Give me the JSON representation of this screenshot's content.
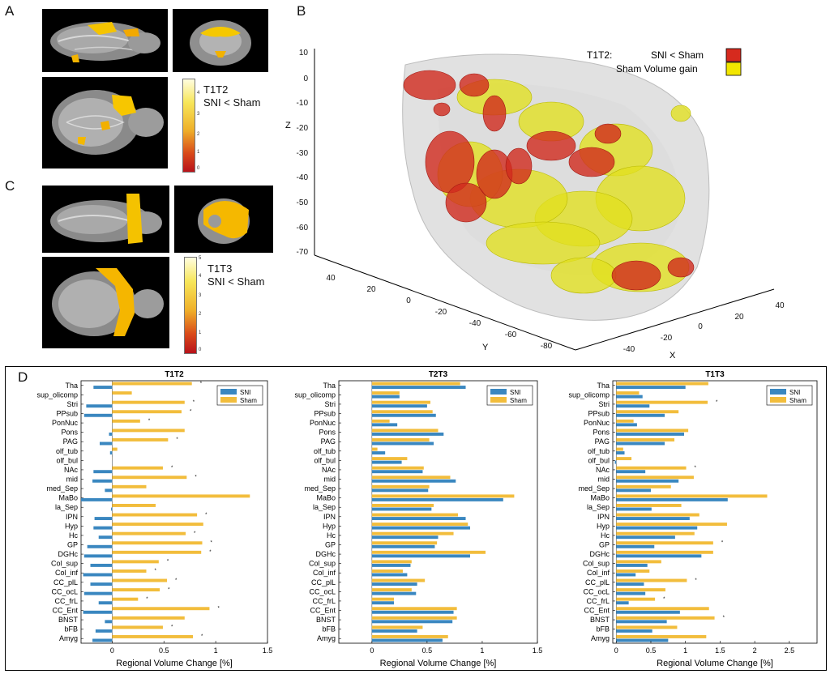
{
  "panels": {
    "a": {
      "letter": "A",
      "colorbar": {
        "title": "T1T2",
        "subtitle": "SNI < Sham",
        "ticks": [
          "4",
          "3",
          "2",
          "1",
          "0"
        ]
      }
    },
    "b": {
      "letter": "B",
      "legend": {
        "prefix": "T1T2:",
        "entries": [
          {
            "label": "SNI < Sham",
            "color": "#d62a1e"
          },
          {
            "label": "Sham Volume gain",
            "color": "#f2e600"
          }
        ]
      },
      "axes": {
        "z": {
          "label": "Z",
          "ticks": [
            "10",
            "0",
            "-10",
            "-20",
            "-30",
            "-40",
            "-50",
            "-60",
            "-70"
          ]
        },
        "y": {
          "label": "Y",
          "ticks": [
            "40",
            "20",
            "0",
            "-20",
            "-40",
            "-60",
            "-80"
          ]
        },
        "x": {
          "label": "X",
          "ticks": [
            "40",
            "20",
            "0",
            "-20",
            "-40"
          ]
        }
      }
    },
    "c": {
      "letter": "C",
      "colorbar": {
        "title": "T1T3",
        "subtitle": "SNI < Sham",
        "ticks": [
          "5",
          "4",
          "3",
          "2",
          "1",
          "0"
        ]
      }
    },
    "d": {
      "letter": "D"
    }
  },
  "colors": {
    "sni": "#3a87c0",
    "sham": "#f2bd3c"
  },
  "chart_data": [
    {
      "type": "bar",
      "orientation": "horizontal",
      "title": "T1T2",
      "xlabel": "Regional Volume Change [%]",
      "xlim": [
        -0.3,
        1.5
      ],
      "xticks": [
        "0",
        "0.5",
        "1",
        "1.5"
      ],
      "legend": [
        "SNI",
        "Sham"
      ],
      "categories": [
        "Tha",
        "sup_olicomp",
        "Stri",
        "PPsub",
        "PonNuc",
        "Pons",
        "PAG",
        "olf_tub",
        "olf_bul",
        "NAc",
        "mid",
        "med_Sep",
        "MaBo",
        "la_Sep",
        "IPN",
        "Hyp",
        "Hc",
        "GP",
        "DGHc",
        "Col_sup",
        "Col_inf",
        "CC_plL",
        "CC_ocL",
        "CC_frL",
        "CC_Ent",
        "BNST",
        "bFB",
        "Amyg"
      ],
      "series": [
        {
          "name": "SNI",
          "values": [
            -0.18,
            0,
            -0.25,
            -0.27,
            0,
            -0.03,
            -0.12,
            -0.02,
            0,
            -0.18,
            -0.19,
            -0.07,
            -0.3,
            -0.01,
            -0.17,
            -0.18,
            -0.13,
            -0.24,
            -0.27,
            -0.21,
            -0.28,
            -0.21,
            -0.27,
            -0.13,
            -0.28,
            -0.07,
            -0.16,
            -0.19
          ]
        },
        {
          "name": "Sham",
          "values": [
            0.77,
            0.19,
            0.7,
            0.67,
            0.27,
            0.7,
            0.54,
            0.05,
            0,
            0.49,
            0.72,
            0.33,
            1.33,
            0.42,
            0.82,
            0.88,
            0.71,
            0.87,
            0.86,
            0.45,
            0.33,
            0.53,
            0.46,
            0.25,
            0.94,
            0.7,
            0.49,
            0.78
          ]
        }
      ],
      "significance": [
        "*",
        "",
        "*",
        "*",
        "*",
        "",
        "*",
        "",
        "",
        "*",
        "*",
        "",
        "",
        "",
        "*",
        "",
        "*",
        "*",
        "*",
        "*",
        "*",
        "*",
        "*",
        "*",
        "*",
        "",
        "*",
        "*"
      ]
    },
    {
      "type": "bar",
      "orientation": "horizontal",
      "title": "T2T3",
      "xlabel": "Regional Volume Change [%]",
      "xlim": [
        -0.3,
        1.5
      ],
      "xticks": [
        "0",
        "0.5",
        "1",
        "1.5"
      ],
      "legend": [
        "SNI",
        "Sham"
      ],
      "categories": [
        "Tha",
        "sup_olicomp",
        "Stri",
        "PPsub",
        "PonNuc",
        "Pons",
        "PAG",
        "olf_tub",
        "olf_bul",
        "NAc",
        "mid",
        "med_Sep",
        "MaBo",
        "la_Sep",
        "IPN",
        "Hyp",
        "Hc",
        "GP",
        "DGHc",
        "Col_sup",
        "Col_inf",
        "CC_plL",
        "CC_ocL",
        "CC_frL",
        "CC_Ent",
        "BNST",
        "bFB",
        "Amyg"
      ],
      "series": [
        {
          "name": "SNI",
          "values": [
            0.85,
            0.25,
            0.5,
            0.58,
            0.23,
            0.65,
            0.56,
            0.12,
            0.27,
            0.46,
            0.76,
            0.51,
            1.19,
            0.54,
            0.85,
            0.89,
            0.6,
            0.57,
            0.89,
            0.35,
            0.32,
            0.41,
            0.4,
            0.2,
            0.74,
            0.73,
            0.41,
            0.64
          ]
        },
        {
          "name": "Sham",
          "values": [
            0.8,
            0.25,
            0.53,
            0.55,
            0.16,
            0.6,
            0.52,
            0.05,
            0.32,
            0.47,
            0.71,
            0.52,
            1.29,
            0.56,
            0.78,
            0.87,
            0.74,
            0.59,
            1.03,
            0.36,
            0.28,
            0.48,
            0.36,
            0.2,
            0.77,
            0.77,
            0.46,
            0.69
          ]
        }
      ]
    },
    {
      "type": "bar",
      "orientation": "horizontal",
      "title": "T1T3",
      "xlabel": "Regional Volume Change [%]",
      "xlim": [
        -0.05,
        2.9
      ],
      "xticks": [
        "0",
        "0.5",
        "1",
        "1.5",
        "2",
        "2.5"
      ],
      "legend": [
        "SNI",
        "Sham"
      ],
      "categories": [
        "Tha",
        "sup_olicomp",
        "Stri",
        "PPsub",
        "PonNuc",
        "Pons",
        "PAG",
        "olf_tub",
        "olf_bul",
        "NAc",
        "mid",
        "med_Sep",
        "MaBo",
        "la_Sep",
        "IPN",
        "Hyp",
        "Hc",
        "GP",
        "DGHc",
        "Col_sup",
        "Col_inf",
        "CC_plL",
        "CC_ocL",
        "CC_frL",
        "CC_Ent",
        "BNST",
        "bFB",
        "Amyg"
      ],
      "series": [
        {
          "name": "SNI",
          "values": [
            1.0,
            0.38,
            0.48,
            0.7,
            0.3,
            0.98,
            0.7,
            0.12,
            -0.02,
            0.42,
            0.9,
            0.5,
            1.61,
            0.51,
            1.06,
            1.17,
            0.85,
            0.55,
            1.23,
            0.45,
            0.28,
            0.4,
            0.42,
            0.18,
            0.92,
            0.73,
            0.52,
            0.75
          ]
        },
        {
          "name": "Sham",
          "values": [
            1.33,
            0.33,
            1.32,
            0.9,
            0.25,
            1.04,
            0.84,
            0.1,
            0.22,
            1.01,
            1.12,
            0.79,
            2.18,
            0.94,
            1.2,
            1.6,
            1.13,
            1.4,
            1.4,
            0.65,
            0.48,
            1.02,
            0.71,
            0.56,
            1.34,
            1.42,
            0.88,
            1.3
          ]
        }
      ],
      "significance": [
        "",
        "",
        "*",
        "",
        "",
        "",
        "",
        "",
        "",
        "*",
        "",
        "",
        "",
        "",
        "",
        "",
        "",
        "*",
        "",
        "",
        "",
        "*",
        "",
        "*",
        "",
        "*",
        "",
        ""
      ]
    }
  ]
}
